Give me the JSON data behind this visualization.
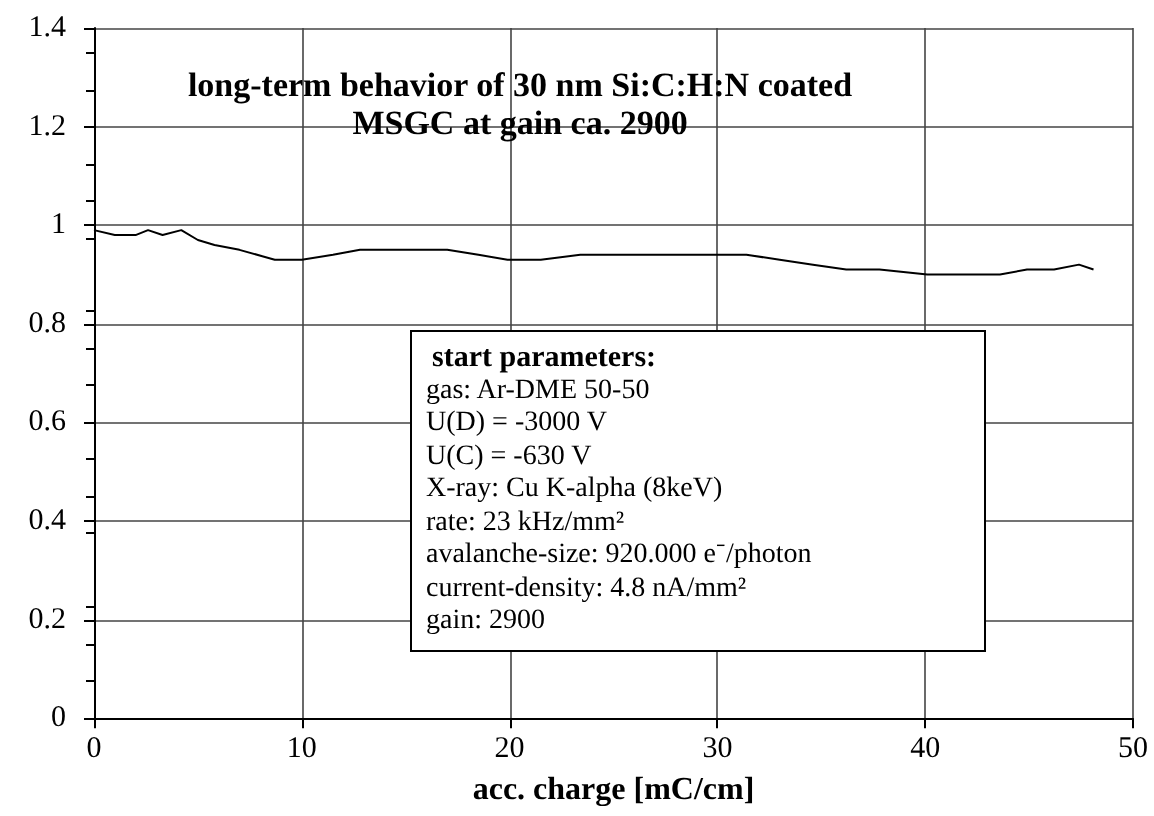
{
  "chart_data": {
    "type": "line",
    "title": "long-term behavior of 30 nm Si:C:H:N coated\nMSGC at gain ca. 2900",
    "xlabel": "acc. charge [mC/cm]",
    "xlim": [
      0,
      50
    ],
    "xticks": [
      0,
      10,
      20,
      30,
      40,
      50
    ],
    "ylim": [
      0,
      1.4
    ],
    "yticks": [
      0,
      0.2,
      0.4,
      0.6,
      0.8,
      1,
      1.2,
      1.4
    ],
    "grid": true,
    "marker": "none",
    "line_style": "solid",
    "x": [
      0,
      1,
      2,
      2.6,
      3.3,
      4.2,
      5,
      5.8,
      7,
      8.7,
      10,
      11.5,
      12.8,
      13.9,
      15.5,
      17,
      18.5,
      19.9,
      21.5,
      23.4,
      25,
      26.6,
      28,
      29.8,
      31.4,
      33,
      34.6,
      36.2,
      37.8,
      40.1,
      42.3,
      43.6,
      44.9,
      46.2,
      47.4,
      48.1
    ],
    "series": [
      {
        "color": "#000000",
        "values": [
          0.99,
          0.98,
          0.98,
          0.99,
          0.98,
          0.99,
          0.97,
          0.96,
          0.95,
          0.93,
          0.93,
          0.94,
          0.95,
          0.95,
          0.95,
          0.95,
          0.94,
          0.93,
          0.93,
          0.94,
          0.94,
          0.94,
          0.94,
          0.94,
          0.94,
          0.93,
          0.92,
          0.91,
          0.91,
          0.9,
          0.9,
          0.9,
          0.91,
          0.91,
          0.92,
          0.91
        ]
      }
    ],
    "annotations": [
      "start parameters:",
      "gas: Ar-DME 50-50",
      "U(D) = -3000 V",
      "U(C) = -630 V",
      "X-ray: Cu K-alpha (8keV)",
      "rate: 23 kHz/mm²",
      "avalanche-size: 920.000 e⁻/photon",
      "current-density: 4.8 nA/mm²",
      "gain: 2900"
    ]
  }
}
